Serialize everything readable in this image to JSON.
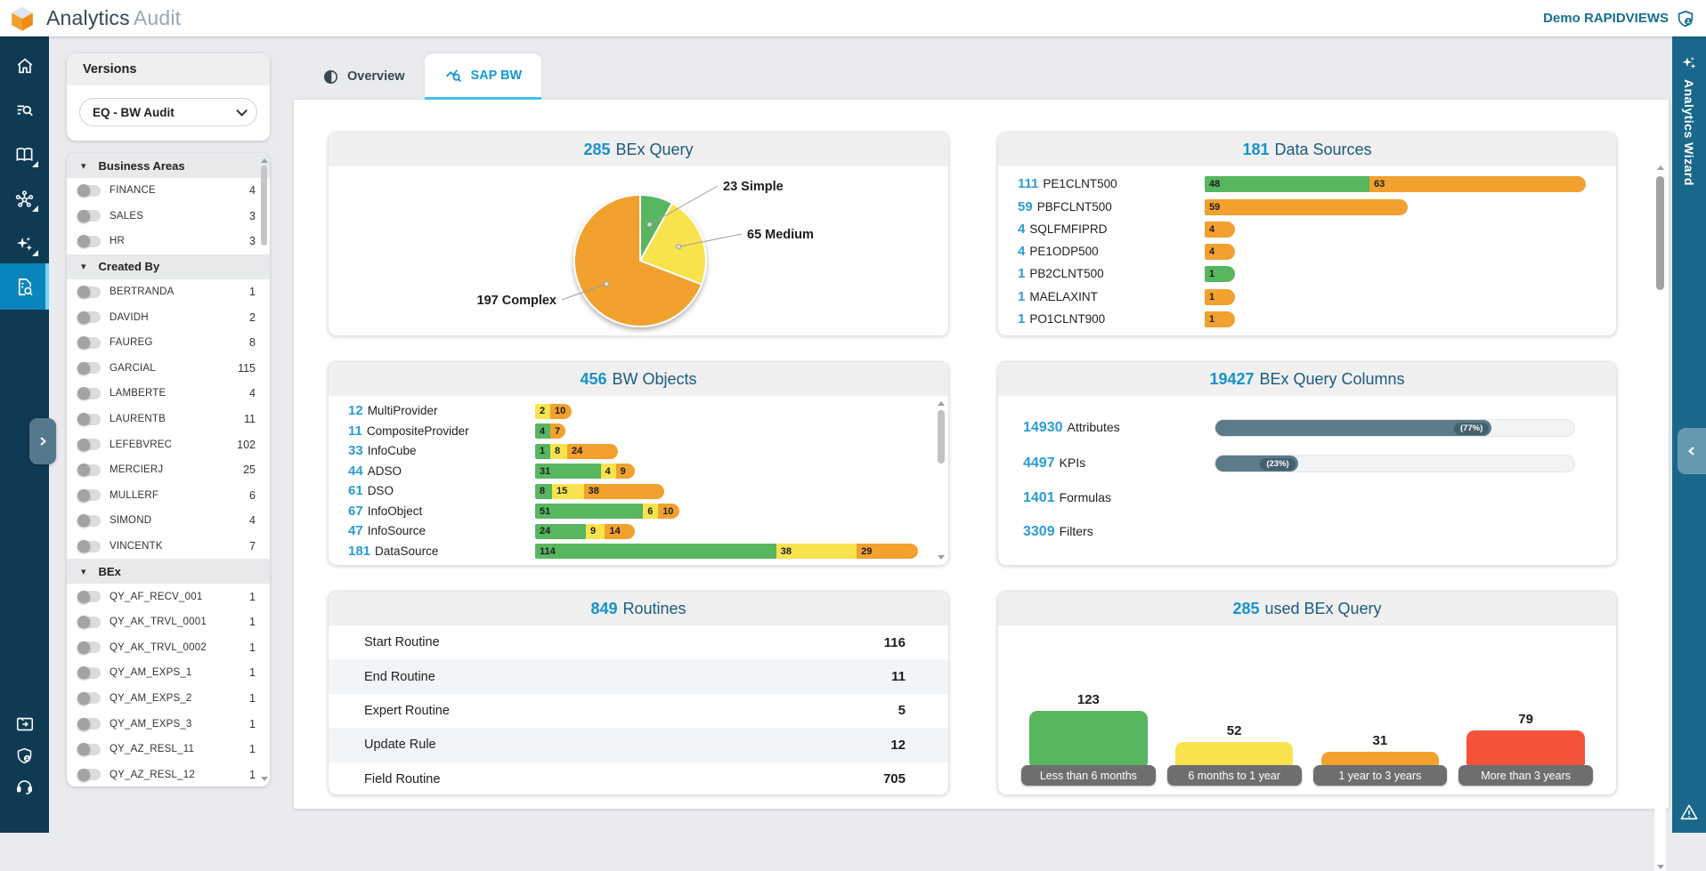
{
  "header": {
    "title_primary": "Analytics",
    "title_secondary": "Audit",
    "user_label": "Demo RAPIDVIEWS"
  },
  "colors": {
    "green": "#58b660",
    "yellow": "#f8e34e",
    "orange": "#f2a02e",
    "red": "#f5523a",
    "slate": "#5d7b8a",
    "accent_blue": "#1792cb",
    "title_dark": "#1c5a7d",
    "sidebar": "#0e3a53",
    "sidebar_active": "#0886bb",
    "rail": "#1a678c"
  },
  "filters": {
    "versions_title": "Versions",
    "version_selected": "EQ - BW Audit",
    "sections": [
      {
        "label": "Business Areas",
        "items": [
          {
            "label": "FINANCE",
            "count": 4
          },
          {
            "label": "SALES",
            "count": 3
          },
          {
            "label": "HR",
            "count": 3
          }
        ]
      },
      {
        "label": "Created By",
        "items": [
          {
            "label": "BERTRANDA",
            "count": 1
          },
          {
            "label": "DAVIDH",
            "count": 2
          },
          {
            "label": "FAUREG",
            "count": 8
          },
          {
            "label": "GARCIAL",
            "count": 115
          },
          {
            "label": "LAMBERTE",
            "count": 4
          },
          {
            "label": "LAURENTB",
            "count": 11
          },
          {
            "label": "LEFEBVREC",
            "count": 102
          },
          {
            "label": "MERCIERJ",
            "count": 25
          },
          {
            "label": "MULLERF",
            "count": 6
          },
          {
            "label": "SIMOND",
            "count": 4
          },
          {
            "label": "VINCENTK",
            "count": 7
          }
        ]
      },
      {
        "label": "BEx",
        "items": [
          {
            "label": "QY_AF_RECV_001",
            "count": 1
          },
          {
            "label": "QY_AK_TRVL_0001",
            "count": 1
          },
          {
            "label": "QY_AK_TRVL_0002",
            "count": 1
          },
          {
            "label": "QY_AM_EXPS_1",
            "count": 1
          },
          {
            "label": "QY_AM_EXPS_2",
            "count": 1
          },
          {
            "label": "QY_AM_EXPS_3",
            "count": 1
          },
          {
            "label": "QY_AZ_RESL_11",
            "count": 1
          },
          {
            "label": "QY_AZ_RESL_12",
            "count": 1
          }
        ]
      }
    ]
  },
  "tabs": [
    {
      "label": "Overview"
    },
    {
      "label": "SAP BW"
    }
  ],
  "cards": {
    "bex_query": {
      "value": "285",
      "title": "BEx Query",
      "chart_type": "pie",
      "slices": [
        {
          "label": "Simple",
          "value": 23,
          "color": "green"
        },
        {
          "label": "Medium",
          "value": 65,
          "color": "yellow"
        },
        {
          "label": "Complex",
          "value": 197,
          "color": "orange"
        }
      ]
    },
    "data_sources": {
      "value": "181",
      "title": "Data Sources",
      "chart_type": "stacked-bar",
      "max": 111,
      "rows": [
        {
          "count": 111,
          "label": "PE1CLNT500",
          "segments": [
            {
              "v": 48,
              "c": "green"
            },
            {
              "v": 63,
              "c": "orange"
            }
          ]
        },
        {
          "count": 59,
          "label": "PBFCLNT500",
          "segments": [
            {
              "v": 59,
              "c": "orange"
            }
          ]
        },
        {
          "count": 4,
          "label": "SQLFMFIPRD",
          "segments": [
            {
              "v": 4,
              "c": "orange"
            }
          ]
        },
        {
          "count": 4,
          "label": "PE1ODP500",
          "segments": [
            {
              "v": 4,
              "c": "orange"
            }
          ]
        },
        {
          "count": 1,
          "label": "PB2CLNT500",
          "segments": [
            {
              "v": 1,
              "c": "green"
            }
          ]
        },
        {
          "count": 1,
          "label": "MAELAXINT",
          "segments": [
            {
              "v": 1,
              "c": "orange"
            }
          ]
        },
        {
          "count": 1,
          "label": "PO1CLNT900",
          "segments": [
            {
              "v": 1,
              "c": "orange"
            }
          ]
        }
      ]
    },
    "bw_objects": {
      "value": "456",
      "title": "BW Objects",
      "chart_type": "stacked-bar",
      "max": 181,
      "rows": [
        {
          "count": 12,
          "label": "MultiProvider",
          "segments": [
            {
              "v": 2,
              "c": "yellow"
            },
            {
              "v": 10,
              "c": "orange"
            }
          ]
        },
        {
          "count": 11,
          "label": "CompositeProvider",
          "segments": [
            {
              "v": 4,
              "c": "green"
            },
            {
              "v": 7,
              "c": "orange"
            }
          ]
        },
        {
          "count": 33,
          "label": "InfoCube",
          "segments": [
            {
              "v": 1,
              "c": "green"
            },
            {
              "v": 8,
              "c": "yellow"
            },
            {
              "v": 24,
              "c": "orange"
            }
          ]
        },
        {
          "count": 44,
          "label": "ADSO",
          "segments": [
            {
              "v": 31,
              "c": "green"
            },
            {
              "v": 4,
              "c": "yellow"
            },
            {
              "v": 9,
              "c": "orange"
            }
          ]
        },
        {
          "count": 61,
          "label": "DSO",
          "segments": [
            {
              "v": 8,
              "c": "green"
            },
            {
              "v": 15,
              "c": "yellow"
            },
            {
              "v": 38,
              "c": "orange"
            }
          ]
        },
        {
          "count": 67,
          "label": "InfoObject",
          "segments": [
            {
              "v": 51,
              "c": "green"
            },
            {
              "v": 6,
              "c": "yellow"
            },
            {
              "v": 10,
              "c": "orange"
            }
          ]
        },
        {
          "count": 47,
          "label": "InfoSource",
          "segments": [
            {
              "v": 24,
              "c": "green"
            },
            {
              "v": 9,
              "c": "yellow"
            },
            {
              "v": 14,
              "c": "orange"
            }
          ]
        },
        {
          "count": 181,
          "label": "DataSource",
          "segments": [
            {
              "v": 114,
              "c": "green"
            },
            {
              "v": 38,
              "c": "yellow"
            },
            {
              "v": 29,
              "c": "orange"
            }
          ]
        }
      ]
    },
    "bex_columns": {
      "value": "19427",
      "title": "BEx Query Columns",
      "chart_type": "progress-bar",
      "rows": [
        {
          "count": "14930",
          "label": "Attributes",
          "pct": 77
        },
        {
          "count": "4497",
          "label": "KPIs",
          "pct": 23
        },
        {
          "count": "1401",
          "label": "Formulas",
          "pct": null
        },
        {
          "count": "3309",
          "label": "Filters",
          "pct": null
        }
      ]
    },
    "routines": {
      "value": "849",
      "title": "Routines",
      "chart_type": "table",
      "rows": [
        {
          "label": "Start Routine",
          "count": "116"
        },
        {
          "label": "End Routine",
          "count": "11"
        },
        {
          "label": "Expert Routine",
          "count": "5"
        },
        {
          "label": "Update Rule",
          "count": "12"
        },
        {
          "label": "Field Routine",
          "count": "705"
        }
      ]
    },
    "used_bex": {
      "value": "285",
      "title": "used BEx Query",
      "chart_type": "bar",
      "bars": [
        {
          "value": 123,
          "label": "Less than 6 months",
          "color": "green"
        },
        {
          "value": 52,
          "label": "6 months to 1 year",
          "color": "yellow"
        },
        {
          "value": 31,
          "label": "1 year to 3 years",
          "color": "orange"
        },
        {
          "value": 79,
          "label": "More than 3 years",
          "color": "red"
        }
      ]
    }
  },
  "right_rail": {
    "label": "Analytics Wizard"
  }
}
